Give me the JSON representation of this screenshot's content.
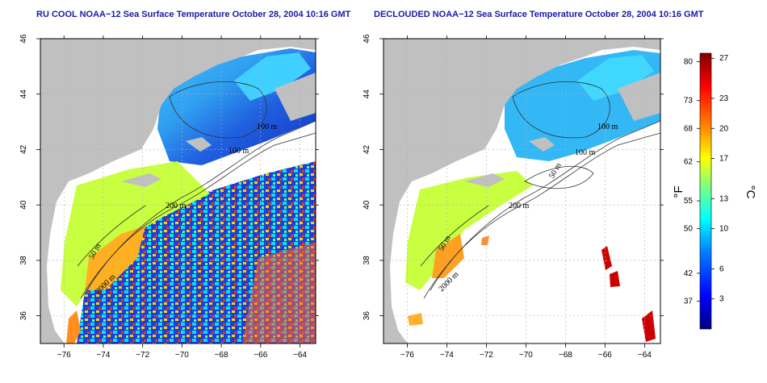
{
  "panels": [
    {
      "id": "left",
      "title": "RU COOL NOAA−12 Sea Surface Temperature October 28, 2004 10:16 GMT",
      "variant": "raw",
      "contour_labels": [
        "100 m",
        "100 m",
        "200 m",
        "50 m",
        "2000 m"
      ]
    },
    {
      "id": "right",
      "title": "DECLOUDED NOAA−12 Sea Surface Temperature October 28, 2004 10:16 GMT",
      "variant": "declouded",
      "contour_labels": [
        "100 m",
        "100 m",
        "50 m",
        "200 m",
        "50 m",
        "2000 m"
      ]
    }
  ],
  "axes": {
    "lon_ticks": [
      "−76",
      "−74",
      "−72",
      "−70",
      "−68",
      "−66",
      "−64"
    ],
    "lon_values": [
      -76,
      -74,
      -72,
      -70,
      -68,
      -66,
      -64
    ],
    "lat_ticks": [
      "36",
      "38",
      "40",
      "42",
      "44",
      "46"
    ],
    "lat_values": [
      36,
      38,
      40,
      42,
      44,
      46
    ],
    "lon_range": [
      -77.2,
      -63.2
    ],
    "lat_range": [
      35.0,
      46.0
    ]
  },
  "colorbar": {
    "fahrenheit_label": "°F",
    "celsius_label": "°C",
    "fahrenheit_ticks": [
      "80",
      "73",
      "68",
      "62",
      "55",
      "50",
      "42",
      "37"
    ],
    "fahrenheit_values": [
      80,
      73,
      68,
      62,
      55,
      50,
      42,
      37
    ],
    "celsius_ticks": [
      "27",
      "23",
      "20",
      "17",
      "13",
      "10",
      "6",
      "3"
    ],
    "celsius_values": [
      27,
      23,
      20,
      17,
      13,
      10,
      6,
      3
    ],
    "range_c": [
      0,
      27.5
    ],
    "colors": [
      "#00007f",
      "#0000ff",
      "#0080ff",
      "#00ffff",
      "#80ff80",
      "#ffff00",
      "#ff8000",
      "#ff0000",
      "#7f0000"
    ]
  },
  "colors": {
    "land": "#c0c0c0",
    "cloud_masked": "#ffffff",
    "title": "#1a1aa8",
    "grid": "#b0b0b0"
  }
}
